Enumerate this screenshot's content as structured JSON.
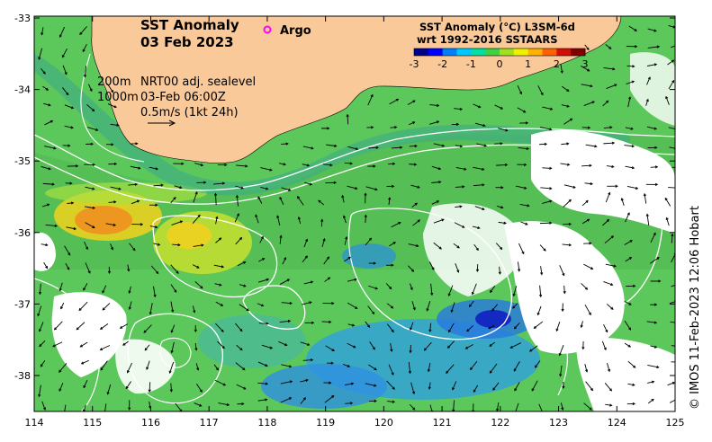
{
  "title": {
    "line1": "SST Anomaly",
    "line2": "03 Feb 2023"
  },
  "legend": {
    "argo_label": "Argo",
    "argo_color": "#ff00ff"
  },
  "colorbar": {
    "title_line1": "SST Anomaly (°C) L3SM-6d",
    "title_line2": "wrt 1992-2016 SSTAARS",
    "ticks": [
      "-3",
      "-2",
      "-1",
      "0",
      "1",
      "2",
      "3"
    ],
    "colors": [
      "#00008b",
      "#0000ff",
      "#0080ff",
      "#00c8ff",
      "#00e0a0",
      "#40d040",
      "#a0e020",
      "#f0f000",
      "#ffb000",
      "#ff6000",
      "#d01000",
      "#800000"
    ]
  },
  "annotations": {
    "contour_200": "200m",
    "contour_1000": "1000m",
    "sealevel": "NRT00 adj. sealevel",
    "datetime": "03-Feb 06:00Z",
    "scale": "0.5m/s (1kt 24h)"
  },
  "axes": {
    "x_ticks": [
      "114",
      "115",
      "116",
      "117",
      "118",
      "119",
      "120",
      "121",
      "122",
      "123",
      "124",
      "125"
    ],
    "y_ticks": [
      "-33",
      "-34",
      "-35",
      "-36",
      "-37",
      "-38"
    ]
  },
  "credit": "© IMOS 11-Feb-2023 12:06 Hobart",
  "colors": {
    "land": "#f9c99a",
    "background_sst": "#5cc85c",
    "warm_anomaly": "#f0a020",
    "cool_anomaly": "#30a0e0",
    "no_data": "#ffffff"
  }
}
